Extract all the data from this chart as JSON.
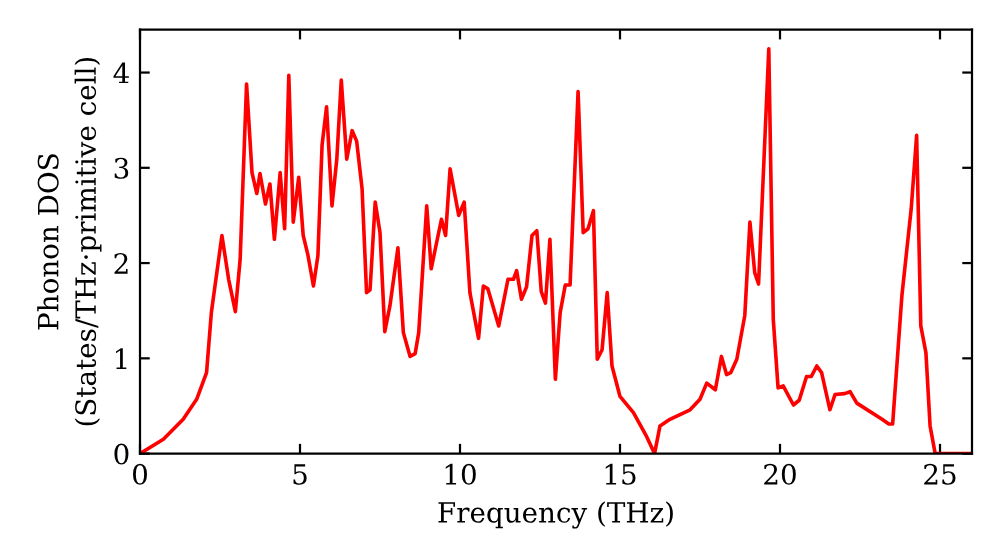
{
  "chart_data": {
    "type": "line",
    "xlabel": "Frequency (THz)",
    "ylabel": "Phonon DOS\n(States/THz·primitive cell)",
    "xlim": [
      0,
      26
    ],
    "ylim": [
      0,
      4.45
    ],
    "xticks": [
      0,
      5,
      10,
      15,
      20,
      25
    ],
    "yticks": [
      0,
      1,
      2,
      3,
      4
    ],
    "grid": false,
    "marker": "none",
    "line_style": "solid",
    "series": [
      {
        "color": "#ff0000",
        "x": [
          0,
          0.73,
          1.35,
          1.77,
          2.08,
          2.23,
          2.56,
          2.77,
          2.98,
          3.13,
          3.33,
          3.5,
          3.65,
          3.75,
          3.92,
          4.06,
          4.2,
          4.38,
          4.52,
          4.65,
          4.79,
          4.96,
          5.1,
          5.25,
          5.42,
          5.56,
          5.69,
          5.83,
          6.0,
          6.15,
          6.29,
          6.46,
          6.63,
          6.77,
          6.94,
          7.08,
          7.19,
          7.35,
          7.5,
          7.65,
          7.81,
          8.06,
          8.23,
          8.44,
          8.6,
          8.71,
          8.96,
          9.1,
          9.42,
          9.55,
          9.69,
          9.96,
          10.13,
          10.31,
          10.58,
          10.73,
          10.87,
          11.21,
          11.5,
          11.67,
          11.77,
          11.92,
          12.08,
          12.25,
          12.4,
          12.54,
          12.67,
          12.81,
          12.98,
          13.13,
          13.29,
          13.44,
          13.69,
          13.85,
          14.0,
          14.17,
          14.29,
          14.44,
          14.6,
          14.75,
          15.0,
          15.42,
          15.83,
          16.08,
          16.25,
          16.56,
          17.19,
          17.5,
          17.71,
          17.98,
          18.17,
          18.33,
          18.46,
          18.65,
          18.9,
          19.06,
          19.21,
          19.33,
          19.65,
          19.79,
          19.94,
          20.1,
          20.42,
          20.6,
          20.83,
          20.98,
          21.15,
          21.3,
          21.56,
          21.72,
          22.02,
          22.19,
          22.4,
          23.19,
          23.4,
          23.52,
          23.81,
          24.1,
          24.27,
          24.4,
          24.56,
          24.69,
          24.85,
          26
        ],
        "values": [
          0,
          0.15,
          0.36,
          0.57,
          0.85,
          1.48,
          2.29,
          1.83,
          1.49,
          2.04,
          3.88,
          2.95,
          2.73,
          2.94,
          2.62,
          2.83,
          2.25,
          2.95,
          2.36,
          3.97,
          2.43,
          2.9,
          2.29,
          2.08,
          1.76,
          2.08,
          3.24,
          3.64,
          2.6,
          3.09,
          3.92,
          3.09,
          3.39,
          3.28,
          2.78,
          1.69,
          1.72,
          2.64,
          2.32,
          1.28,
          1.55,
          2.16,
          1.27,
          1.02,
          1.05,
          1.27,
          2.6,
          1.94,
          2.46,
          2.29,
          2.99,
          2.5,
          2.64,
          1.69,
          1.21,
          1.76,
          1.73,
          1.34,
          1.83,
          1.83,
          1.92,
          1.62,
          1.75,
          2.29,
          2.34,
          1.7,
          1.58,
          2.25,
          0.78,
          1.48,
          1.77,
          1.77,
          3.8,
          2.32,
          2.36,
          2.55,
          0.99,
          1.09,
          1.69,
          0.92,
          0.6,
          0.43,
          0.18,
          0,
          0.29,
          0.36,
          0.46,
          0.57,
          0.74,
          0.67,
          1.02,
          0.83,
          0.85,
          0.99,
          1.45,
          2.43,
          1.9,
          1.78,
          4.25,
          1.41,
          0.69,
          0.71,
          0.51,
          0.56,
          0.81,
          0.81,
          0.92,
          0.85,
          0.46,
          0.62,
          0.63,
          0.65,
          0.53,
          0.36,
          0.31,
          0.31,
          1.66,
          2.57,
          3.34,
          1.34,
          1.06,
          0.29,
          0,
          0
        ]
      }
    ]
  }
}
